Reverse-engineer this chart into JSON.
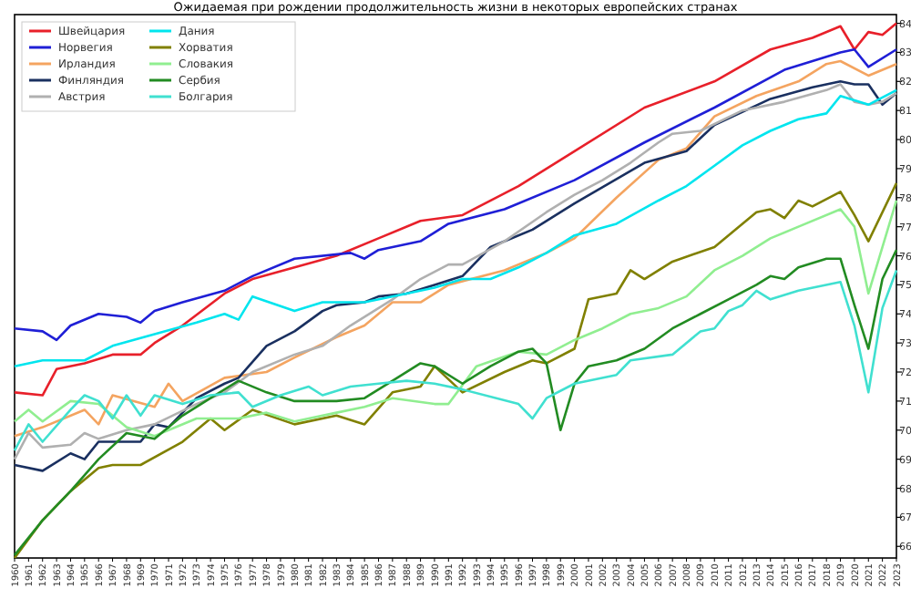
{
  "chart_data": {
    "type": "line",
    "title": "Ожидаемая при рождении продолжительность жизни в некоторых европейских странах",
    "xlim": [
      1960,
      2023
    ],
    "xticks": [
      1960,
      1961,
      1962,
      1963,
      1964,
      1965,
      1966,
      1967,
      1968,
      1969,
      1970,
      1971,
      1972,
      1973,
      1974,
      1975,
      1976,
      1977,
      1978,
      1979,
      1980,
      1981,
      1982,
      1983,
      1984,
      1985,
      1986,
      1987,
      1988,
      1989,
      1990,
      1991,
      1992,
      1993,
      1994,
      1995,
      1996,
      1997,
      1998,
      1999,
      2000,
      2001,
      2002,
      2003,
      2004,
      2005,
      2006,
      2007,
      2008,
      2009,
      2010,
      2011,
      2012,
      2013,
      2014,
      2015,
      2016,
      2017,
      2018,
      2019,
      2020,
      2021,
      2022,
      2023
    ],
    "ylim": [
      65.6,
      84.3
    ],
    "yticks": [
      66,
      67,
      68,
      69,
      70,
      71,
      72,
      73,
      74,
      75,
      76,
      77,
      78,
      79,
      80,
      81,
      82,
      83,
      84
    ],
    "legend": "top left",
    "marker": "none",
    "line_style": "solid",
    "series": [
      {
        "name": "Швейцария",
        "color": "#e8202a",
        "x": [
          1960,
          1962,
          1963,
          1965,
          1967,
          1969,
          1970,
          1972,
          1975,
          1977,
          1980,
          1983,
          1986,
          1989,
          1992,
          1996,
          2000,
          2005,
          2010,
          2014,
          2017,
          2019,
          2020,
          2021,
          2022,
          2023
        ],
        "values": [
          71.3,
          71.2,
          72.1,
          72.3,
          72.6,
          72.6,
          73.0,
          73.6,
          74.7,
          75.2,
          75.6,
          76.0,
          76.6,
          77.2,
          77.4,
          78.4,
          79.6,
          81.1,
          82.0,
          83.1,
          83.5,
          83.9,
          83.1,
          83.7,
          83.6,
          84.0
        ]
      },
      {
        "name": "Норвегия",
        "color": "#1f1fd6",
        "x": [
          1960,
          1962,
          1963,
          1964,
          1966,
          1968,
          1969,
          1970,
          1972,
          1975,
          1977,
          1980,
          1984,
          1985,
          1986,
          1989,
          1991,
          1995,
          2000,
          2005,
          2010,
          2015,
          2019,
          2020,
          2021,
          2023
        ],
        "values": [
          73.5,
          73.4,
          73.1,
          73.6,
          74.0,
          73.9,
          73.7,
          74.1,
          74.4,
          74.8,
          75.3,
          75.9,
          76.1,
          75.9,
          76.2,
          76.5,
          77.1,
          77.6,
          78.6,
          79.9,
          81.1,
          82.4,
          83.0,
          83.1,
          82.5,
          83.1
        ]
      },
      {
        "name": "Ирландия",
        "color": "#f4a460",
        "x": [
          1960,
          1962,
          1965,
          1966,
          1967,
          1970,
          1971,
          1972,
          1975,
          1978,
          1980,
          1983,
          1985,
          1987,
          1989,
          1991,
          1995,
          1998,
          2000,
          2003,
          2006,
          2008,
          2010,
          2013,
          2016,
          2018,
          2019,
          2021,
          2023
        ],
        "values": [
          69.8,
          70.1,
          70.7,
          70.2,
          71.2,
          70.8,
          71.6,
          71.0,
          71.8,
          72.0,
          72.5,
          73.2,
          73.6,
          74.4,
          74.4,
          75.0,
          75.5,
          76.1,
          76.6,
          78.0,
          79.3,
          79.7,
          80.8,
          81.5,
          82.0,
          82.6,
          82.7,
          82.2,
          82.6
        ]
      },
      {
        "name": "Финляндия",
        "color": "#1a3060",
        "x": [
          1960,
          1962,
          1964,
          1965,
          1966,
          1969,
          1970,
          1971,
          1973,
          1975,
          1976,
          1978,
          1980,
          1982,
          1983,
          1985,
          1986,
          1988,
          1990,
          1992,
          1994,
          1997,
          2000,
          2005,
          2008,
          2010,
          2014,
          2017,
          2019,
          2020,
          2021,
          2022,
          2023
        ],
        "values": [
          68.8,
          68.6,
          69.2,
          69.0,
          69.6,
          69.6,
          70.2,
          70.1,
          71.1,
          71.6,
          71.8,
          72.9,
          73.4,
          74.1,
          74.3,
          74.4,
          74.6,
          74.7,
          75.0,
          75.3,
          76.3,
          76.9,
          77.8,
          79.2,
          79.6,
          80.5,
          81.4,
          81.8,
          82.0,
          81.9,
          81.9,
          81.2,
          81.6
        ]
      },
      {
        "name": "Австрия",
        "color": "#b0b0b0",
        "x": [
          1960,
          1961,
          1962,
          1964,
          1965,
          1966,
          1968,
          1970,
          1973,
          1975,
          1977,
          1980,
          1982,
          1984,
          1987,
          1989,
          1991,
          1992,
          1995,
          1998,
          2000,
          2002,
          2004,
          2006,
          2007,
          2009,
          2012,
          2015,
          2018,
          2019,
          2020,
          2021,
          2022,
          2023
        ],
        "values": [
          69.0,
          69.9,
          69.4,
          69.5,
          69.9,
          69.7,
          70.0,
          70.2,
          70.9,
          71.3,
          72.0,
          72.6,
          72.9,
          73.6,
          74.5,
          75.2,
          75.7,
          75.7,
          76.5,
          77.5,
          78.1,
          78.6,
          79.2,
          79.9,
          80.2,
          80.3,
          81.0,
          81.3,
          81.7,
          81.9,
          81.3,
          81.2,
          81.3,
          81.6
        ]
      },
      {
        "name": "Дания",
        "color": "#00e5ee",
        "x": [
          1960,
          1962,
          1965,
          1967,
          1970,
          1973,
          1975,
          1976,
          1977,
          1980,
          1982,
          1985,
          1988,
          1990,
          1992,
          1994,
          1996,
          1998,
          2000,
          2003,
          2006,
          2008,
          2010,
          2012,
          2014,
          2016,
          2018,
          2019,
          2021,
          2023
        ],
        "values": [
          72.2,
          72.4,
          72.4,
          72.9,
          73.3,
          73.7,
          74.0,
          73.8,
          74.6,
          74.1,
          74.4,
          74.4,
          74.7,
          74.9,
          75.2,
          75.2,
          75.6,
          76.1,
          76.7,
          77.1,
          77.9,
          78.4,
          79.1,
          79.8,
          80.3,
          80.7,
          80.9,
          81.5,
          81.2,
          81.7
        ]
      },
      {
        "name": "Хорватия",
        "color": "#808000",
        "x": [
          1960,
          1962,
          1964,
          1966,
          1967,
          1969,
          1972,
          1974,
          1975,
          1977,
          1980,
          1983,
          1985,
          1987,
          1989,
          1990,
          1992,
          1995,
          1997,
          1998,
          2000,
          2001,
          2003,
          2004,
          2005,
          2007,
          2010,
          2013,
          2014,
          2015,
          2016,
          2017,
          2019,
          2020,
          2021,
          2023
        ],
        "values": [
          65.6,
          66.9,
          67.9,
          68.7,
          68.8,
          68.8,
          69.6,
          70.4,
          70.0,
          70.7,
          70.2,
          70.5,
          70.2,
          71.3,
          71.5,
          72.2,
          71.3,
          72.0,
          72.4,
          72.3,
          72.8,
          74.5,
          74.7,
          75.5,
          75.2,
          75.8,
          76.3,
          77.5,
          77.6,
          77.3,
          77.9,
          77.7,
          78.2,
          77.4,
          76.5,
          78.5
        ]
      },
      {
        "name": "Словакия",
        "color": "#90ee90",
        "x": [
          1960,
          1961,
          1962,
          1964,
          1966,
          1968,
          1970,
          1971,
          1973,
          1976,
          1978,
          1980,
          1983,
          1985,
          1987,
          1990,
          1991,
          1993,
          1996,
          1998,
          2000,
          2002,
          2004,
          2006,
          2008,
          2010,
          2012,
          2014,
          2016,
          2019,
          2020,
          2021,
          2023
        ],
        "values": [
          70.3,
          70.7,
          70.3,
          71.0,
          70.9,
          70.1,
          69.8,
          70.0,
          70.4,
          70.4,
          70.6,
          70.3,
          70.6,
          70.8,
          71.1,
          70.9,
          70.9,
          72.2,
          72.7,
          72.6,
          73.1,
          73.5,
          74.0,
          74.2,
          74.6,
          75.5,
          76.0,
          76.6,
          77.0,
          77.6,
          77.0,
          74.7,
          77.9
        ]
      },
      {
        "name": "Сербия",
        "color": "#228b22",
        "x": [
          1960,
          1962,
          1964,
          1966,
          1968,
          1970,
          1972,
          1974,
          1976,
          1978,
          1980,
          1983,
          1985,
          1987,
          1989,
          1990,
          1992,
          1994,
          1996,
          1997,
          1998,
          1999,
          2000,
          2001,
          2003,
          2005,
          2007,
          2009,
          2011,
          2013,
          2014,
          2015,
          2016,
          2018,
          2019,
          2020,
          2021,
          2022,
          2023
        ],
        "values": [
          65.7,
          66.9,
          67.9,
          69.0,
          69.9,
          69.7,
          70.5,
          71.1,
          71.7,
          71.3,
          71.0,
          71.0,
          71.1,
          71.7,
          72.3,
          72.2,
          71.6,
          72.2,
          72.7,
          72.8,
          72.3,
          70.0,
          71.6,
          72.2,
          72.4,
          72.8,
          73.5,
          74.0,
          74.5,
          75.0,
          75.3,
          75.2,
          75.6,
          75.9,
          75.9,
          74.3,
          72.8,
          75.2,
          76.2
        ]
      },
      {
        "name": "Болгария",
        "color": "#40e0d0",
        "x": [
          1960,
          1961,
          1962,
          1964,
          1965,
          1966,
          1967,
          1968,
          1969,
          1970,
          1972,
          1974,
          1976,
          1977,
          1979,
          1981,
          1982,
          1984,
          1986,
          1988,
          1990,
          1992,
          1996,
          1997,
          1998,
          2000,
          2003,
          2004,
          2007,
          2009,
          2010,
          2011,
          2012,
          2013,
          2014,
          2016,
          2019,
          2020,
          2021,
          2022,
          2023
        ],
        "values": [
          69.3,
          70.2,
          69.6,
          70.7,
          71.2,
          71.0,
          70.4,
          71.2,
          70.5,
          71.2,
          70.9,
          71.2,
          71.3,
          70.8,
          71.2,
          71.5,
          71.2,
          71.5,
          71.6,
          71.7,
          71.6,
          71.4,
          70.9,
          70.4,
          71.1,
          71.6,
          71.9,
          72.4,
          72.6,
          73.4,
          73.5,
          74.1,
          74.3,
          74.8,
          74.5,
          74.8,
          75.1,
          73.6,
          71.3,
          74.2,
          75.5
        ]
      }
    ]
  }
}
